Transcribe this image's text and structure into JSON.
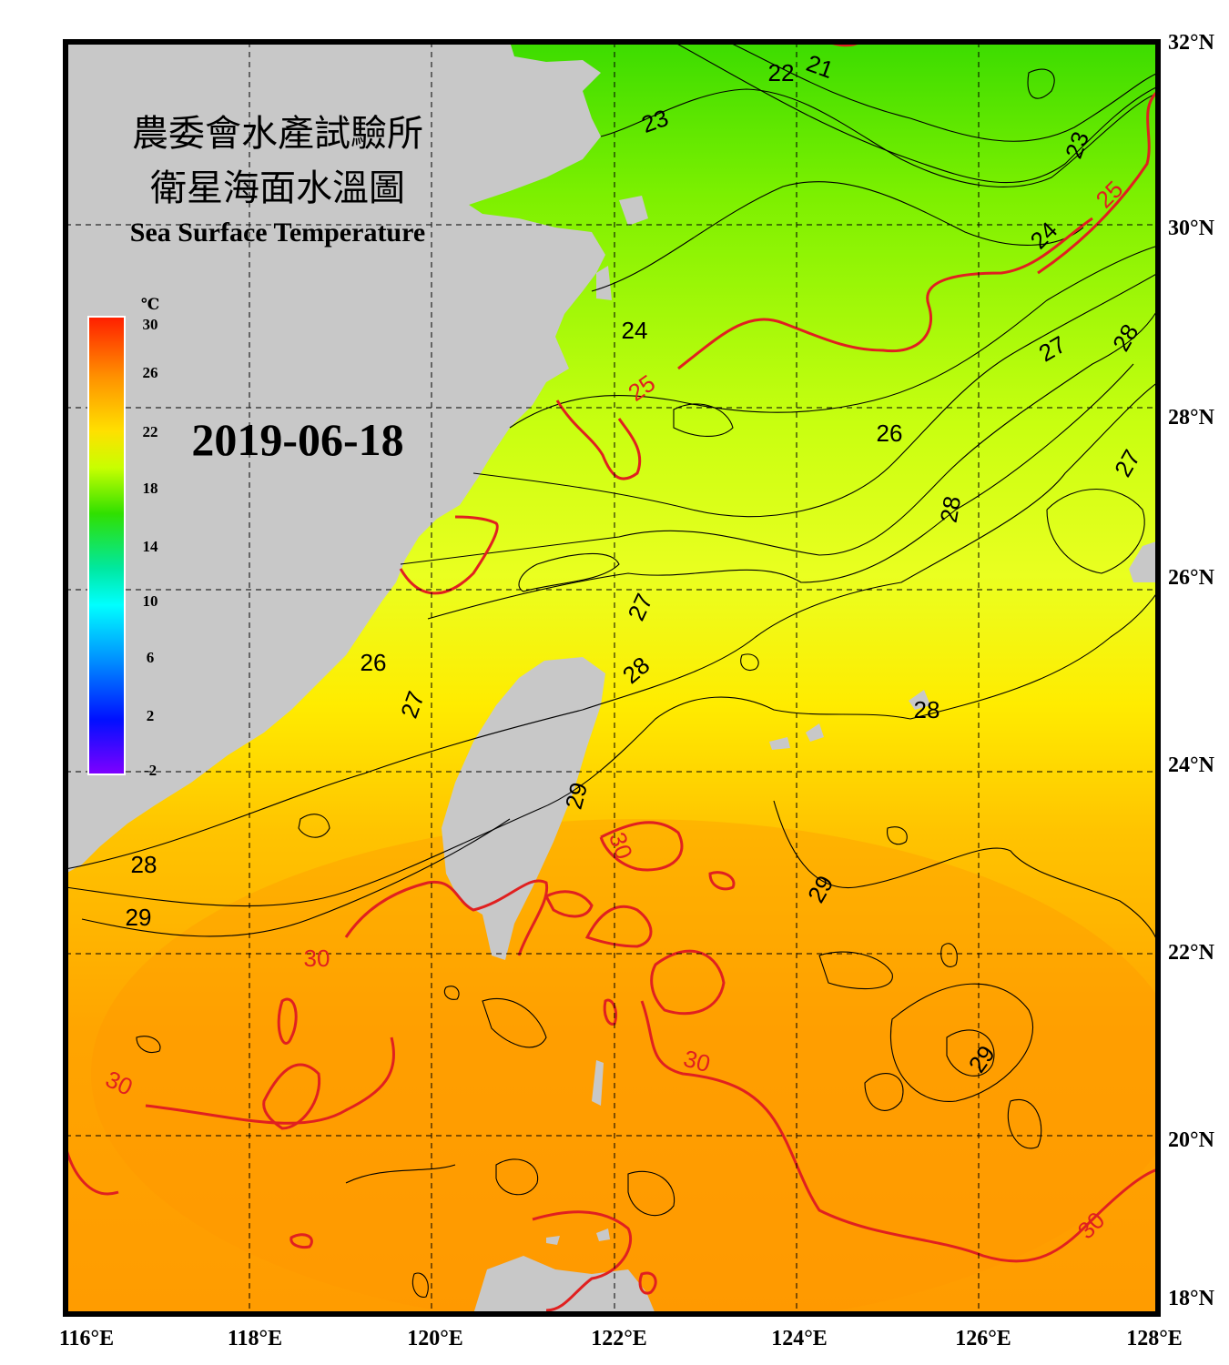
{
  "title": {
    "line1": "農委會水產試驗所",
    "line2": "衛星海面水溫圖",
    "english": "Sea Surface Temperature"
  },
  "date": "2019-06-18",
  "colorbar": {
    "unit": "℃",
    "ticks": [
      "30",
      "26",
      "22",
      "18",
      "14",
      "10",
      "6",
      "2",
      "-2"
    ],
    "colors": [
      "#ff1e00",
      "#ff9000",
      "#ffe000",
      "#c8ff00",
      "#30e000",
      "#00e8a0",
      "#00ffff",
      "#0090ff",
      "#0010ff",
      "#8000ff"
    ]
  },
  "axes": {
    "lon_labels": [
      "116°E",
      "118°E",
      "120°E",
      "122°E",
      "124°E",
      "126°E",
      "128°E"
    ],
    "lat_labels": [
      "32°N",
      "30°N",
      "28°N",
      "26°N",
      "24°N",
      "22°N",
      "20°N",
      "18°N"
    ]
  },
  "isotherm_labels": [
    {
      "text": "21",
      "color": "black"
    },
    {
      "text": "22",
      "color": "black"
    },
    {
      "text": "23",
      "color": "black"
    },
    {
      "text": "23",
      "color": "black"
    },
    {
      "text": "24",
      "color": "black"
    },
    {
      "text": "24",
      "color": "black"
    },
    {
      "text": "25",
      "color": "red"
    },
    {
      "text": "25",
      "color": "red"
    },
    {
      "text": "26",
      "color": "black"
    },
    {
      "text": "26",
      "color": "black"
    },
    {
      "text": "27",
      "color": "black"
    },
    {
      "text": "27",
      "color": "black"
    },
    {
      "text": "27",
      "color": "black"
    },
    {
      "text": "27",
      "color": "black"
    },
    {
      "text": "28",
      "color": "black"
    },
    {
      "text": "28",
      "color": "black"
    },
    {
      "text": "28",
      "color": "black"
    },
    {
      "text": "28",
      "color": "black"
    },
    {
      "text": "28",
      "color": "black"
    },
    {
      "text": "29",
      "color": "black"
    },
    {
      "text": "29",
      "color": "black"
    },
    {
      "text": "29",
      "color": "black"
    },
    {
      "text": "29",
      "color": "black"
    },
    {
      "text": "30",
      "color": "red"
    },
    {
      "text": "30",
      "color": "red"
    },
    {
      "text": "30",
      "color": "red"
    },
    {
      "text": "30",
      "color": "red"
    },
    {
      "text": "30",
      "color": "red"
    }
  ],
  "colors": {
    "land": "#c8c8c8",
    "frame": "#000000",
    "isotherm": "#000000",
    "isotherm_highlight": "#e02020"
  }
}
